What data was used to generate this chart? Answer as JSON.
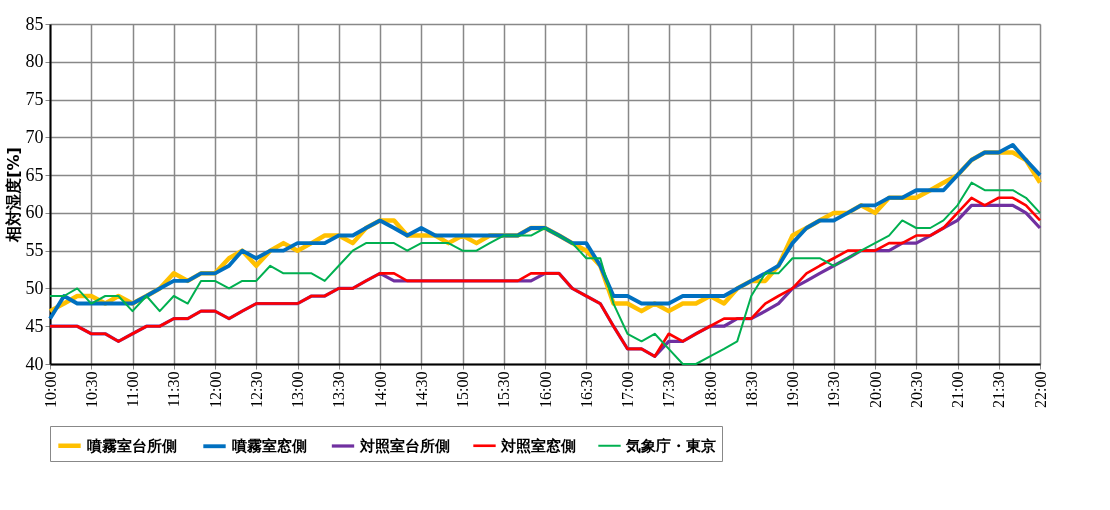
{
  "chart_data": {
    "type": "line",
    "ylabel": "相対湿度[%]",
    "x": [
      10,
      10.17,
      10.33,
      10.5,
      10.67,
      10.83,
      11,
      11.17,
      11.33,
      11.5,
      11.67,
      11.83,
      12,
      12.17,
      12.33,
      12.5,
      12.67,
      12.83,
      13,
      13.17,
      13.33,
      13.5,
      13.67,
      13.83,
      14,
      14.17,
      14.33,
      14.5,
      14.67,
      14.83,
      15,
      15.17,
      15.33,
      15.5,
      15.67,
      15.83,
      16,
      16.17,
      16.33,
      16.5,
      16.67,
      16.83,
      17,
      17.17,
      17.33,
      17.5,
      17.67,
      17.83,
      18,
      18.17,
      18.33,
      18.5,
      18.67,
      18.83,
      19,
      19.17,
      19.33,
      19.5,
      19.67,
      19.83,
      20,
      20.17,
      20.33,
      20.5,
      20.67,
      20.83,
      21,
      21.17,
      21.33,
      21.5,
      21.67,
      21.83,
      22
    ],
    "series": [
      {
        "name": "噴霧室台所側",
        "color": "#ffc000",
        "values": [
          47,
          48,
          49,
          49,
          48,
          49,
          48,
          49,
          50,
          52,
          51,
          52,
          52,
          54,
          55,
          53,
          55,
          56,
          55,
          56,
          57,
          57,
          56,
          58,
          59,
          59,
          57,
          57,
          57,
          56,
          57,
          56,
          57,
          57,
          57,
          58,
          58,
          57,
          56,
          55,
          53,
          48,
          48,
          47,
          48,
          47,
          48,
          48,
          49,
          48,
          50,
          51,
          51,
          53,
          57,
          58,
          59,
          60,
          60,
          61,
          60,
          62,
          62,
          62,
          63,
          64,
          65,
          67,
          68,
          68,
          68,
          67,
          64
        ]
      },
      {
        "name": "噴霧室窓側",
        "color": "#0070c0",
        "values": [
          46,
          49,
          48,
          48,
          48,
          48,
          48,
          49,
          50,
          51,
          51,
          52,
          52,
          53,
          55,
          54,
          55,
          55,
          56,
          56,
          56,
          57,
          57,
          58,
          59,
          58,
          57,
          58,
          57,
          57,
          57,
          57,
          57,
          57,
          57,
          58,
          58,
          57,
          56,
          56,
          53,
          49,
          49,
          48,
          48,
          48,
          49,
          49,
          49,
          49,
          50,
          51,
          52,
          53,
          56,
          58,
          59,
          59,
          60,
          61,
          61,
          62,
          62,
          63,
          63,
          63,
          65,
          67,
          68,
          68,
          69,
          67,
          65
        ]
      },
      {
        "name": "対照室台所側",
        "color": "#7030a0",
        "values": [
          45,
          45,
          45,
          44,
          44,
          43,
          44,
          45,
          45,
          46,
          46,
          47,
          47,
          46,
          47,
          48,
          48,
          48,
          48,
          49,
          49,
          50,
          50,
          51,
          52,
          51,
          51,
          51,
          51,
          51,
          51,
          51,
          51,
          51,
          51,
          51,
          52,
          52,
          50,
          49,
          48,
          45,
          42,
          42,
          41,
          43,
          43,
          44,
          45,
          45,
          46,
          46,
          47,
          48,
          50,
          51,
          52,
          53,
          54,
          55,
          55,
          55,
          56,
          56,
          57,
          58,
          59,
          61,
          61,
          61,
          61,
          60,
          58
        ]
      },
      {
        "name": "対照室窓側",
        "color": "#ff0000",
        "values": [
          45,
          45,
          45,
          44,
          44,
          43,
          44,
          45,
          45,
          46,
          46,
          47,
          47,
          46,
          47,
          48,
          48,
          48,
          48,
          49,
          49,
          50,
          50,
          51,
          52,
          52,
          51,
          51,
          51,
          51,
          51,
          51,
          51,
          51,
          51,
          52,
          52,
          52,
          50,
          49,
          48,
          45,
          42,
          42,
          41,
          44,
          43,
          44,
          45,
          46,
          46,
          46,
          48,
          49,
          50,
          52,
          53,
          54,
          55,
          55,
          55,
          56,
          56,
          57,
          57,
          58,
          60,
          62,
          61,
          62,
          62,
          61,
          59
        ]
      },
      {
        "name": "気象庁・東京",
        "color": "#00b050",
        "values": [
          49,
          49,
          50,
          48,
          49,
          49,
          47,
          49,
          47,
          49,
          48,
          51,
          51,
          50,
          51,
          51,
          53,
          52,
          52,
          52,
          51,
          53,
          55,
          56,
          56,
          56,
          55,
          56,
          56,
          56,
          55,
          55,
          56,
          57,
          57,
          57,
          58,
          57,
          56,
          54,
          54,
          48,
          44,
          43,
          44,
          42,
          40,
          40,
          41,
          42,
          43,
          49,
          52,
          52,
          54,
          54,
          54,
          53,
          54,
          55,
          56,
          57,
          59,
          58,
          58,
          59,
          61,
          64,
          63,
          63,
          63,
          62,
          60
        ]
      }
    ],
    "xlim": [
      10,
      22
    ],
    "xticks": [
      {
        "value": 10,
        "label": "10:00"
      },
      {
        "value": 10.5,
        "label": "10:30"
      },
      {
        "value": 11,
        "label": "11:00"
      },
      {
        "value": 11.5,
        "label": "11:30"
      },
      {
        "value": 12,
        "label": "12:00"
      },
      {
        "value": 12.5,
        "label": "12:30"
      },
      {
        "value": 13,
        "label": "13:00"
      },
      {
        "value": 13.5,
        "label": "13:30"
      },
      {
        "value": 14,
        "label": "14:00"
      },
      {
        "value": 14.5,
        "label": "14:30"
      },
      {
        "value": 15,
        "label": "15:00"
      },
      {
        "value": 15.5,
        "label": "15:30"
      },
      {
        "value": 16,
        "label": "16:00"
      },
      {
        "value": 16.5,
        "label": "16:30"
      },
      {
        "value": 17,
        "label": "17:00"
      },
      {
        "value": 17.5,
        "label": "17:30"
      },
      {
        "value": 18,
        "label": "18:00"
      },
      {
        "value": 18.5,
        "label": "18:30"
      },
      {
        "value": 19,
        "label": "19:00"
      },
      {
        "value": 19.5,
        "label": "19:30"
      },
      {
        "value": 20,
        "label": "20:00"
      },
      {
        "value": 20.5,
        "label": "20:30"
      },
      {
        "value": 21,
        "label": "21:00"
      },
      {
        "value": 21.5,
        "label": "21:30"
      },
      {
        "value": 22,
        "label": "22:00"
      }
    ],
    "ylim": [
      40,
      85
    ],
    "yticks": [
      40,
      45,
      50,
      55,
      60,
      65,
      70,
      75,
      80,
      85
    ],
    "grid": true,
    "legend": "bottom",
    "marker": "none",
    "line_style": "solid"
  }
}
